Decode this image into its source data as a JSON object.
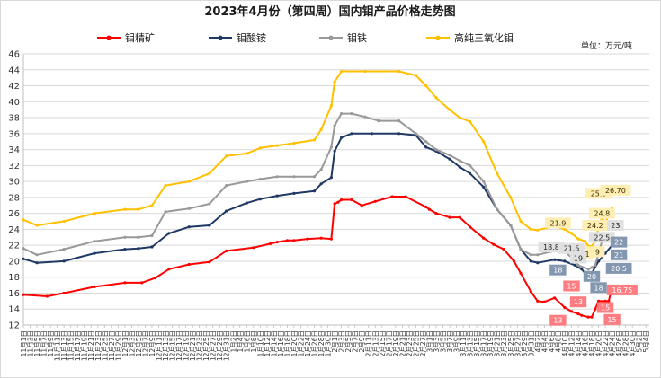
{
  "chart_data": {
    "type": "line",
    "title": "2023年4月份（第四周）国内钼产品价格走势图",
    "unit_label": "单位：万元/吨",
    "ylim": [
      12,
      46
    ],
    "yticks": [
      12,
      14,
      16,
      18,
      20,
      22,
      24,
      26,
      28,
      30,
      32,
      34,
      36,
      38,
      40,
      42,
      44,
      46
    ],
    "grid": true,
    "legend_position": "top",
    "x_domain": [
      "11月1日",
      "5月5日"
    ],
    "xticks": [
      "11月1日",
      "11月3日",
      "11月5日",
      "11月7日",
      "11月9日",
      "11月11日",
      "11月13日",
      "11月15日",
      "11月17日",
      "11月19日",
      "11月21日",
      "11月23日",
      "11月25日",
      "11月27日",
      "11月29日",
      "12月1日",
      "12月3日",
      "12月5日",
      "12月7日",
      "12月9日",
      "12月11日",
      "12月13日",
      "12月15日",
      "12月17日",
      "12月19日",
      "12月21日",
      "12月23日",
      "12月25日",
      "12月27日",
      "12月29日",
      "12月31日",
      "1月2日",
      "1月4日",
      "1月6日",
      "1月8日",
      "1月10日",
      "1月12日",
      "1月14日",
      "1月16日",
      "1月18日",
      "1月20日",
      "1月22日",
      "1月24日",
      "1月26日",
      "1月28日",
      "1月30日",
      "2月1日",
      "2月3日",
      "2月5日",
      "2月7日",
      "2月9日",
      "2月11日",
      "2月13日",
      "2月15日",
      "2月17日",
      "2月19日",
      "2月21日",
      "2月23日",
      "2月25日",
      "2月27日",
      "3月1日",
      "3月3日",
      "3月5日",
      "3月7日",
      "3月9日",
      "3月11日",
      "3月13日",
      "3月15日",
      "3月17日",
      "3月19日",
      "3月21日",
      "3月23日",
      "3月25日",
      "3月27日",
      "3月29日",
      "3月31日",
      "4月2日",
      "4月4日",
      "4月6日",
      "4月8日",
      "4月10日",
      "4月12日",
      "4月14日",
      "4月16日",
      "4月18日",
      "4月20日",
      "4月22日",
      "4月24日",
      "4月26日",
      "4月28日",
      "4月30日",
      "5月2日",
      "5月4日"
    ],
    "series": [
      {
        "name": "钼精矿",
        "color": "#ff0000",
        "x": [
          "11月1日",
          "11月8日",
          "11月13日",
          "11月22日",
          "12月1日",
          "12月6日",
          "12月10日",
          "12月14日",
          "12月20日",
          "12月26日",
          "12月31日",
          "1月8日",
          "1月13日",
          "1月15日",
          "1月18日",
          "1月20日",
          "1月24日",
          "1月28日",
          "1月31日",
          "2月1日",
          "2月2日",
          "2月3日",
          "2月6日",
          "2月9日",
          "2月13日",
          "2月18日",
          "2月22日",
          "2月28日",
          "3月1日",
          "3月3日",
          "3月7日",
          "3月10日",
          "3月13日",
          "3月17日",
          "3月20日",
          "3月23日",
          "3月26日",
          "3月28日",
          "3月31日",
          "4月2日",
          "4月4日",
          "4月7日",
          "4月10日",
          "4月12日",
          "4月14日",
          "4月15日",
          "4月17日",
          "4月18日",
          "4月19日",
          "4月20日",
          "4月22日",
          "4月23日",
          "4月24日"
        ],
        "values": [
          15.8,
          15.6,
          16,
          16.8,
          17.3,
          17.3,
          17.9,
          19,
          19.6,
          19.9,
          21.3,
          21.7,
          22.2,
          22.4,
          22.6,
          22.6,
          22.8,
          22.9,
          22.8,
          27.2,
          27.4,
          27.7,
          27.7,
          27,
          27.5,
          28.1,
          28.1,
          26.8,
          26.5,
          26,
          25.5,
          25.5,
          24.3,
          22.9,
          22.1,
          21.5,
          20,
          18.5,
          16.2,
          15,
          14.9,
          15.4,
          14.2,
          13.7,
          13.4,
          13.2,
          13,
          13,
          14,
          15,
          15,
          15,
          16.75
        ]
      },
      {
        "name": "钼酸铵",
        "color": "#1f3864",
        "x": [
          "11月1日",
          "11月5日",
          "11月13日",
          "11月22日",
          "12月1日",
          "12月5日",
          "12月9日",
          "12月14日",
          "12月20日",
          "12月26日",
          "12月31日",
          "1月6日",
          "1月10日",
          "1月15日",
          "1月20日",
          "1月26日",
          "1月28日",
          "1月31日",
          "2月1日",
          "2月3日",
          "2月6日",
          "2月12日",
          "2月20日",
          "2月25日",
          "2月28日",
          "3月3日",
          "3月7日",
          "3月10日",
          "3月13日",
          "3月17日",
          "3月21日",
          "3月25日",
          "3月28日",
          "3月31日",
          "4月2日",
          "4月7日",
          "4月10日",
          "4月13日",
          "4月15日",
          "4月16日",
          "4月17日",
          "4月18日",
          "4月20日",
          "4月22日",
          "4月24日"
        ],
        "values": [
          20.3,
          19.8,
          20,
          21,
          21.5,
          21.6,
          21.8,
          23.5,
          24.3,
          24.5,
          26.3,
          27.3,
          27.8,
          28.2,
          28.5,
          28.8,
          29.7,
          30.5,
          33.8,
          35.5,
          36,
          36,
          36,
          35.8,
          34.3,
          33.8,
          32.8,
          31.8,
          31,
          29.3,
          26.5,
          24.5,
          21.5,
          20,
          19.8,
          20.2,
          20,
          19.5,
          19,
          18.5,
          18,
          18.5,
          20,
          21,
          22
        ]
      },
      {
        "name": "钼铁",
        "color": "#999999",
        "x": [
          "11月1日",
          "11月5日",
          "11月13日",
          "11月22日",
          "12月1日",
          "12月5日",
          "12月9日",
          "12月13日",
          "12月20日",
          "12月26日",
          "12月31日",
          "1月6日",
          "1月10日",
          "1月15日",
          "1月20日",
          "1月26日",
          "1月28日",
          "1月31日",
          "2月1日",
          "2月3日",
          "2月6日",
          "2月10日",
          "2月14日",
          "2月20日",
          "2月25日",
          "2月28日",
          "3月3日",
          "3月7日",
          "3月10日",
          "3月13日",
          "3月17日",
          "3月21日",
          "3月25日",
          "3月28日",
          "3月31日",
          "4月2日",
          "4月7日",
          "4月10日",
          "4月13日",
          "4月14日",
          "4月17日",
          "4月18日",
          "4月19日",
          "4月20日",
          "4月21日",
          "4月23日",
          "4月24日"
        ],
        "values": [
          21.6,
          20.8,
          21.5,
          22.5,
          23,
          23,
          23.2,
          26.2,
          26.6,
          27.2,
          29.5,
          30,
          30.3,
          30.6,
          30.6,
          30.6,
          31.5,
          34.3,
          37,
          38.5,
          38.5,
          38.1,
          37.6,
          37.6,
          36,
          35,
          34,
          33.3,
          32.6,
          32,
          30,
          26.5,
          24.5,
          21.5,
          20.8,
          20.8,
          21.3,
          21.3,
          20,
          19.5,
          19,
          19.2,
          19.5,
          21,
          22.5,
          22.5,
          23
        ]
      },
      {
        "name": "高纯三氧化钼",
        "color": "#ffc000",
        "x": [
          "11月1日",
          "11月5日",
          "11月13日",
          "11月22日",
          "12月1日",
          "12月5日",
          "12月9日",
          "12月13日",
          "12月20日",
          "12月26日",
          "12月31日",
          "1月6日",
          "1月10日",
          "1月15日",
          "1月20日",
          "1月26日",
          "1月28日",
          "1月31日",
          "2月1日",
          "2月3日",
          "2月10日",
          "2月20日",
          "2月25日",
          "2月28日",
          "3月3日",
          "3月7日",
          "3月10日",
          "3月13日",
          "3月17日",
          "3月21日",
          "3月25日",
          "3月28日",
          "3月31日",
          "4月2日",
          "4月7日",
          "4月10日",
          "4月12日",
          "4月14日",
          "4月16日",
          "4月17日",
          "4月18日",
          "4月19日",
          "4月20日",
          "4月21日",
          "4月22日",
          "4月24日"
        ],
        "values": [
          25.2,
          24.5,
          25,
          26,
          26.5,
          26.5,
          27,
          29.5,
          30,
          31,
          33.2,
          33.5,
          34.2,
          34.5,
          34.8,
          35.2,
          36.5,
          39.5,
          42.5,
          43.8,
          43.8,
          43.8,
          43.3,
          42,
          40.5,
          39,
          38,
          37.5,
          35,
          31,
          28,
          25,
          24,
          23.9,
          24.4,
          24,
          23.5,
          22.8,
          22.5,
          21.9,
          21.9,
          22.5,
          24.2,
          25.5,
          24.8,
          26.7
        ]
      }
    ],
    "annotations": [
      {
        "text": "21.9",
        "x": "4月8日",
        "y": 24.8,
        "bg": "#ffeeb3",
        "color": "#3d2f00"
      },
      {
        "text": "25.5",
        "x": "4月20日",
        "y": 28.5,
        "bg": "#ffeeb3",
        "color": "#3d2f00"
      },
      {
        "text": "26.70",
        "x": "4月25日",
        "y": 28.9,
        "bg": "#ffeeb3",
        "color": "#3d2f00"
      },
      {
        "text": "24.8",
        "x": "4月21日",
        "y": 26.0,
        "bg": "#ffeeb3",
        "color": "#3d2f00"
      },
      {
        "text": "24.2",
        "x": "4月19日",
        "y": 24.5,
        "bg": "#ffeeb3",
        "color": "#3d2f00"
      },
      {
        "text": "21.9",
        "x": "4月18日",
        "y": 21.2,
        "bg": "#ffeeb3",
        "color": "#3d2f00"
      },
      {
        "text": "21",
        "x": "4月16日",
        "y": 20.9,
        "bg": "#ffeeb3",
        "color": "#3d2f00"
      },
      {
        "text": "18.8",
        "x": "4月6日",
        "y": 21.8,
        "bg": "#e0e0e0",
        "color": "#222222"
      },
      {
        "text": "21.5",
        "x": "4月12日",
        "y": 21.6,
        "bg": "#e0e0e0",
        "color": "#222222"
      },
      {
        "text": "19",
        "x": "4月14日",
        "y": 20.4,
        "bg": "#e0e0e0",
        "color": "#222222"
      },
      {
        "text": "22.5",
        "x": "4月21日",
        "y": 23.0,
        "bg": "#e0e0e0",
        "color": "#222222"
      },
      {
        "text": "23",
        "x": "4月25日",
        "y": 24.5,
        "bg": "#e0e0e0",
        "color": "#222222"
      },
      {
        "text": "18",
        "x": "4月8日",
        "y": 18.9,
        "bg": "#8497b0",
        "color": "#ffffff"
      },
      {
        "text": "20",
        "x": "4月18日",
        "y": 18.1,
        "bg": "#8497b0",
        "color": "#ffffff"
      },
      {
        "text": "22",
        "x": "4月26日",
        "y": 22.4,
        "bg": "#8497b0",
        "color": "#ffffff"
      },
      {
        "text": "21",
        "x": "4月26日",
        "y": 20.8,
        "bg": "#8497b0",
        "color": "#ffffff"
      },
      {
        "text": "20.5",
        "x": "4月26日",
        "y": 19.1,
        "bg": "#8497b0",
        "color": "#ffffff"
      },
      {
        "text": "18",
        "x": "4月20日",
        "y": 16.7,
        "bg": "#8497b0",
        "color": "#ffffff"
      },
      {
        "text": "15",
        "x": "4月12日",
        "y": 16.9,
        "bg": "#ff7c80",
        "color": "#ffffff"
      },
      {
        "text": "13",
        "x": "4月14日",
        "y": 14.9,
        "bg": "#ff7c80",
        "color": "#ffffff"
      },
      {
        "text": "13",
        "x": "4月8日",
        "y": 12.6,
        "bg": "#ff7c80",
        "color": "#ffffff"
      },
      {
        "text": "15",
        "x": "4月22日",
        "y": 14.2,
        "bg": "#ff7c80",
        "color": "#ffffff"
      },
      {
        "text": "15",
        "x": "4月24日",
        "y": 12.7,
        "bg": "#ff7c80",
        "color": "#ffffff"
      },
      {
        "text": "16.75",
        "x": "4月27日",
        "y": 16.4,
        "bg": "#ff7c80",
        "color": "#ffffff"
      }
    ]
  }
}
